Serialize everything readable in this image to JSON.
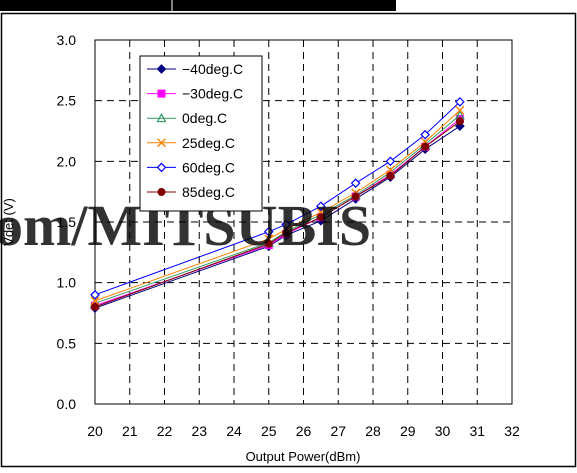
{
  "chart_data": {
    "type": "line",
    "xlabel": "Output Power(dBm)",
    "ylabel": "Vdet (V)",
    "xlim": [
      20,
      32
    ],
    "ylim": [
      0.0,
      3.0
    ],
    "x_ticks": [
      "20",
      "21",
      "22",
      "23",
      "24",
      "25",
      "26",
      "27",
      "28",
      "29",
      "30",
      "31",
      "32"
    ],
    "y_ticks": [
      "0.0",
      "0.5",
      "1.0",
      "1.5",
      "2.0",
      "2.5",
      "3.0"
    ],
    "grid": true,
    "legend_position": "top-left",
    "x": [
      20,
      25,
      25.5,
      26.5,
      27.5,
      28.5,
      29.5,
      30.5
    ],
    "series": [
      {
        "name": "−40deg.C",
        "color": "#000080",
        "marker": "diamond-filled",
        "values": [
          0.79,
          1.3,
          1.39,
          1.51,
          1.69,
          1.87,
          2.1,
          2.29
        ]
      },
      {
        "name": "−30deg.C",
        "color": "#ff00ff",
        "marker": "square-filled",
        "values": [
          0.81,
          1.31,
          1.4,
          1.54,
          1.71,
          1.89,
          2.12,
          2.35
        ]
      },
      {
        "name": "0deg.C",
        "color": "#339966",
        "marker": "triangle-open",
        "values": [
          0.83,
          1.33,
          1.42,
          1.56,
          1.72,
          1.91,
          2.14,
          2.38
        ]
      },
      {
        "name": "25deg.C",
        "color": "#ff8000",
        "marker": "x",
        "values": [
          0.85,
          1.36,
          1.44,
          1.58,
          1.74,
          1.93,
          2.16,
          2.42
        ]
      },
      {
        "name": "60deg.C",
        "color": "#0000ff",
        "marker": "diamond-open",
        "values": [
          0.9,
          1.42,
          1.48,
          1.63,
          1.82,
          2.0,
          2.22,
          2.49
        ]
      },
      {
        "name": "85deg.C",
        "color": "#800000",
        "marker": "circle-filled",
        "values": [
          0.8,
          1.32,
          1.41,
          1.54,
          1.71,
          1.88,
          2.12,
          2.33
        ]
      }
    ]
  },
  "watermark": "om/MITSUBIS"
}
